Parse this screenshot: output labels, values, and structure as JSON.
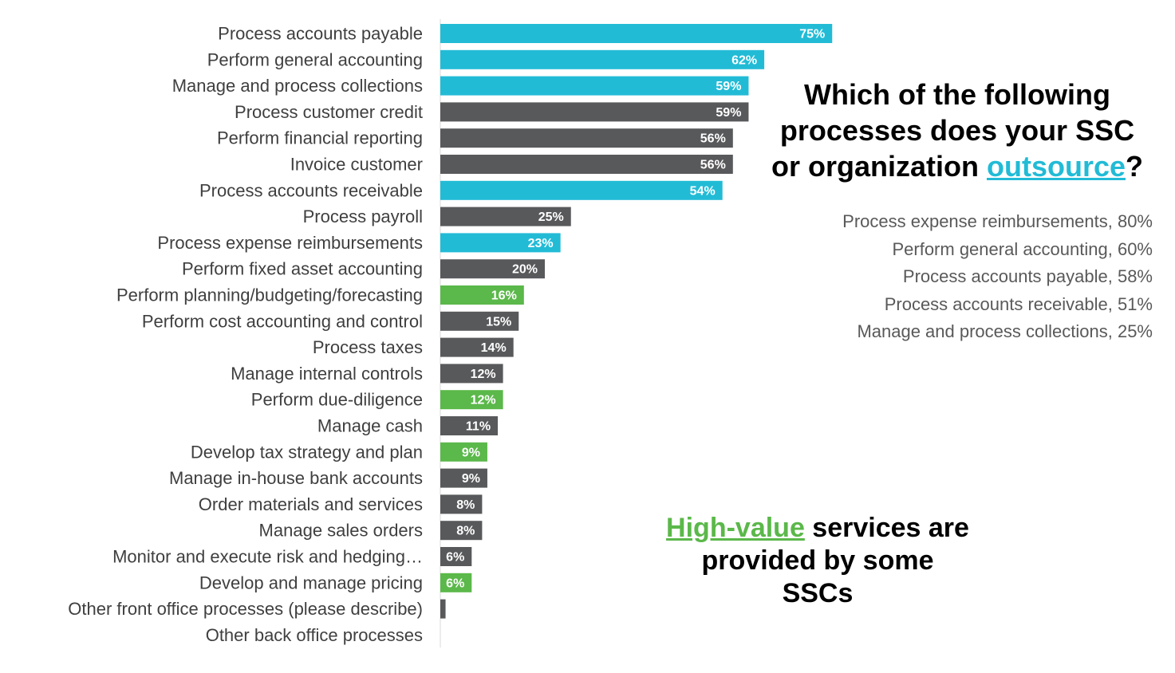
{
  "chart_data": {
    "type": "bar",
    "orientation": "horizontal",
    "categories": [
      "Process accounts payable",
      "Perform general accounting",
      "Manage and process collections",
      "Process customer credit",
      "Perform financial reporting",
      "Invoice customer",
      "Process accounts receivable",
      "Process payroll",
      "Process expense reimbursements",
      "Perform fixed asset accounting",
      "Perform planning/budgeting/forecasting",
      "Perform cost accounting and control",
      "Process taxes",
      "Manage internal controls",
      "Perform due-diligence",
      "Manage cash",
      "Develop tax strategy and plan",
      "Manage in-house bank accounts",
      "Order materials and services",
      "Manage sales orders",
      "Monitor and execute risk and hedging…",
      "Develop and manage pricing",
      "Other front office processes (please describe)",
      "Other back office processes"
    ],
    "values": [
      75,
      62,
      59,
      59,
      56,
      56,
      54,
      25,
      23,
      20,
      16,
      15,
      14,
      12,
      12,
      11,
      9,
      9,
      8,
      8,
      6,
      6,
      1,
      0
    ],
    "value_labels": [
      "75%",
      "62%",
      "59%",
      "59%",
      "56%",
      "56%",
      "54%",
      "25%",
      "23%",
      "20%",
      "16%",
      "15%",
      "14%",
      "12%",
      "12%",
      "11%",
      "9%",
      "9%",
      "8%",
      "8%",
      "6%",
      "6%",
      "",
      ""
    ],
    "bar_groups": [
      "outsourced",
      "outsourced",
      "outsourced",
      "other",
      "other",
      "other",
      "outsourced",
      "other",
      "outsourced",
      "other",
      "high-value",
      "other",
      "other",
      "other",
      "high-value",
      "other",
      "high-value",
      "other",
      "other",
      "other",
      "other",
      "high-value",
      "other",
      "other"
    ],
    "colors": {
      "outsourced": "#22bbd6",
      "other": "#58595b",
      "high-value": "#5bb84a"
    },
    "xlim": [
      0,
      100
    ],
    "title": "",
    "xlabel": "",
    "ylabel": ""
  },
  "title": {
    "line1": "Which of the following",
    "line2": "processes does your SSC",
    "line3_pre": "or organization ",
    "line3_highlight": "outsource",
    "line3_post": "?"
  },
  "outsource_list": [
    "Process expense reimbursements, 80%",
    "Perform general accounting, 60%",
    "Process accounts payable, 58%",
    "Process accounts receivable, 51%",
    "Manage and process collections, 25%"
  ],
  "note": {
    "highlight": "High-value",
    "line1_post": " services are",
    "line2": "provided by some",
    "line3": "SSCs"
  }
}
